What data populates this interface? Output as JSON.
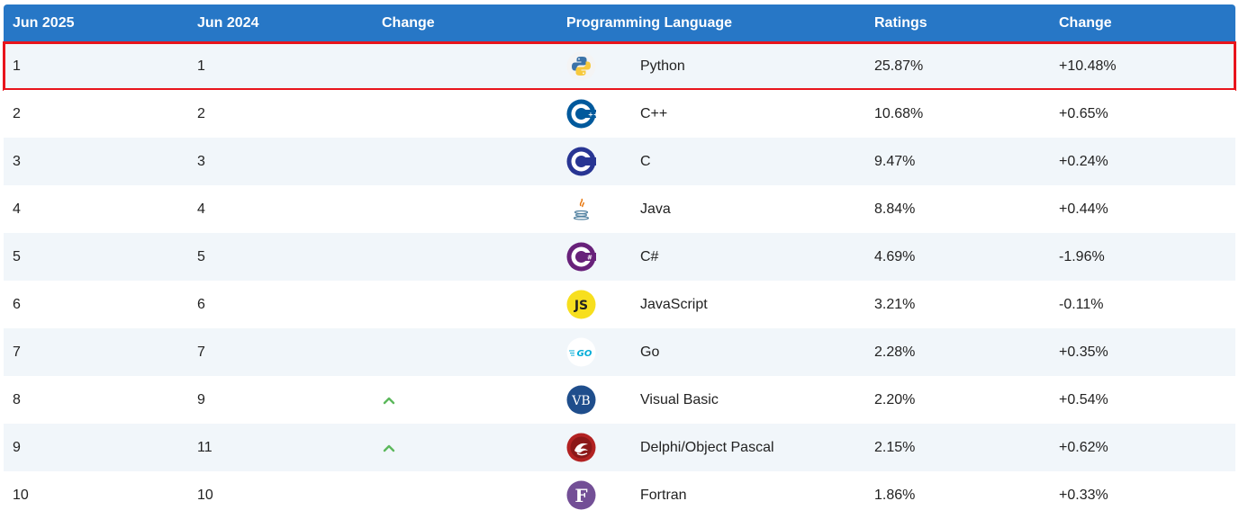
{
  "headers": {
    "this_year": "Jun 2025",
    "last_year": "Jun 2024",
    "change": "Change",
    "language": "Programming Language",
    "ratings": "Ratings",
    "rating_change": "Change"
  },
  "rows": [
    {
      "this_year": "1",
      "last_year": "1",
      "language": "Python",
      "ratings": "25.87%",
      "change": "+10.48%",
      "logo_icon": "python-logo-icon",
      "trend": ""
    },
    {
      "this_year": "2",
      "last_year": "2",
      "language": "C++",
      "ratings": "10.68%",
      "change": "+0.65%",
      "logo_icon": "cpp-logo-icon",
      "trend": ""
    },
    {
      "this_year": "3",
      "last_year": "3",
      "language": "C",
      "ratings": "9.47%",
      "change": "+0.24%",
      "logo_icon": "c-logo-icon",
      "trend": ""
    },
    {
      "this_year": "4",
      "last_year": "4",
      "language": "Java",
      "ratings": "8.84%",
      "change": "+0.44%",
      "logo_icon": "java-logo-icon",
      "trend": ""
    },
    {
      "this_year": "5",
      "last_year": "5",
      "language": "C#",
      "ratings": "4.69%",
      "change": "-1.96%",
      "logo_icon": "csharp-logo-icon",
      "trend": ""
    },
    {
      "this_year": "6",
      "last_year": "6",
      "language": "JavaScript",
      "ratings": "3.21%",
      "change": "-0.11%",
      "logo_icon": "javascript-logo-icon",
      "trend": ""
    },
    {
      "this_year": "7",
      "last_year": "7",
      "language": "Go",
      "ratings": "2.28%",
      "change": "+0.35%",
      "logo_icon": "go-logo-icon",
      "trend": ""
    },
    {
      "this_year": "8",
      "last_year": "9",
      "language": "Visual Basic",
      "ratings": "2.20%",
      "change": "+0.54%",
      "logo_icon": "visual-basic-logo-icon",
      "trend": "up"
    },
    {
      "this_year": "9",
      "last_year": "11",
      "language": "Delphi/Object Pascal",
      "ratings": "2.15%",
      "change": "+0.62%",
      "logo_icon": "delphi-logo-icon",
      "trend": "up"
    },
    {
      "this_year": "10",
      "last_year": "10",
      "language": "Fortran",
      "ratings": "1.86%",
      "change": "+0.33%",
      "logo_icon": "fortran-logo-icon",
      "trend": ""
    }
  ],
  "colors": {
    "header_bg": "#2777c6",
    "row_alt_bg": "#f1f6fa",
    "highlight_border": "#e8141c",
    "trend_up": "#5cb85c"
  }
}
